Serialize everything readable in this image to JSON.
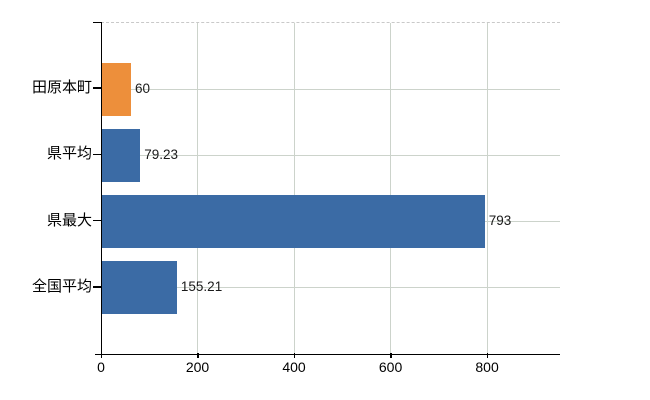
{
  "chart_data": {
    "type": "bar",
    "orientation": "horizontal",
    "title": "",
    "xlabel": "",
    "ylabel": "",
    "categories": [
      "田原本町",
      "県平均",
      "県最大",
      "全国平均"
    ],
    "values": [
      60,
      79.23,
      793,
      155.21
    ],
    "value_labels": [
      "60",
      "79.23",
      "793",
      "155.21"
    ],
    "bar_colors": [
      "#ED8F3B",
      "#3B6BA5",
      "#3B6BA5",
      "#3B6BA5"
    ],
    "x_tick_values": [
      0,
      200,
      400,
      600,
      800
    ],
    "x_tick_labels": [
      "0",
      "200",
      "400",
      "600",
      "800"
    ],
    "xlim": [
      0,
      949
    ],
    "grid": true,
    "legend": false,
    "colors": {
      "bar_orange": "#ED8F3B",
      "bar_blue": "#3B6BA5",
      "gridline": "#CCD3CB",
      "plot_top_dashed_border": "#C9C9C9",
      "axis": "#000000",
      "text": "#000000",
      "background": "#FFFFFF"
    }
  }
}
